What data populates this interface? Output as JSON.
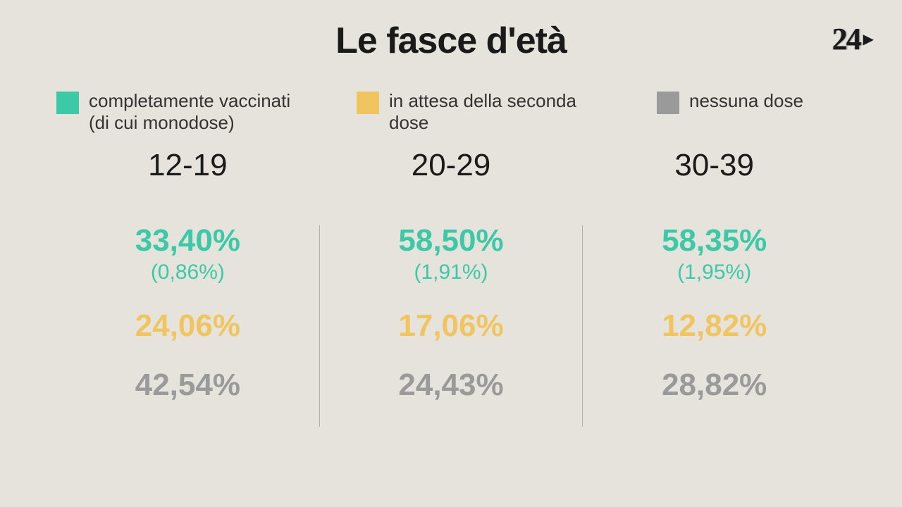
{
  "title": "Le fasce d'età",
  "logo": {
    "text": "24"
  },
  "colors": {
    "vaccinated": "#3cc9a7",
    "awaiting": "#f0c55f",
    "none": "#9a9a9a",
    "background": "#e6e3dc",
    "text": "#1a1a1a"
  },
  "legend": [
    {
      "key": "vaccinated",
      "label": "completamente vaccinati (di cui monodose)",
      "color": "#3cc9a7"
    },
    {
      "key": "awaiting",
      "label": "in attesa della seconda dose",
      "color": "#f0c55f"
    },
    {
      "key": "none",
      "label": "nessuna dose",
      "color": "#9a9a9a"
    }
  ],
  "columns": [
    {
      "range": "12-19",
      "vaccinated": "33,40%",
      "monodose": "(0,86%)",
      "awaiting": "24,06%",
      "none": "42,54%"
    },
    {
      "range": "20-29",
      "vaccinated": "58,50%",
      "monodose": "(1,91%)",
      "awaiting": "17,06%",
      "none": "24,43%"
    },
    {
      "range": "30-39",
      "vaccinated": "58,35%",
      "monodose": "(1,95%)",
      "awaiting": "12,82%",
      "none": "28,82%"
    }
  ],
  "typography": {
    "title_fontsize": 52,
    "legend_fontsize": 26,
    "range_fontsize": 44,
    "stat_fontsize": 44,
    "sub_fontsize": 30
  }
}
